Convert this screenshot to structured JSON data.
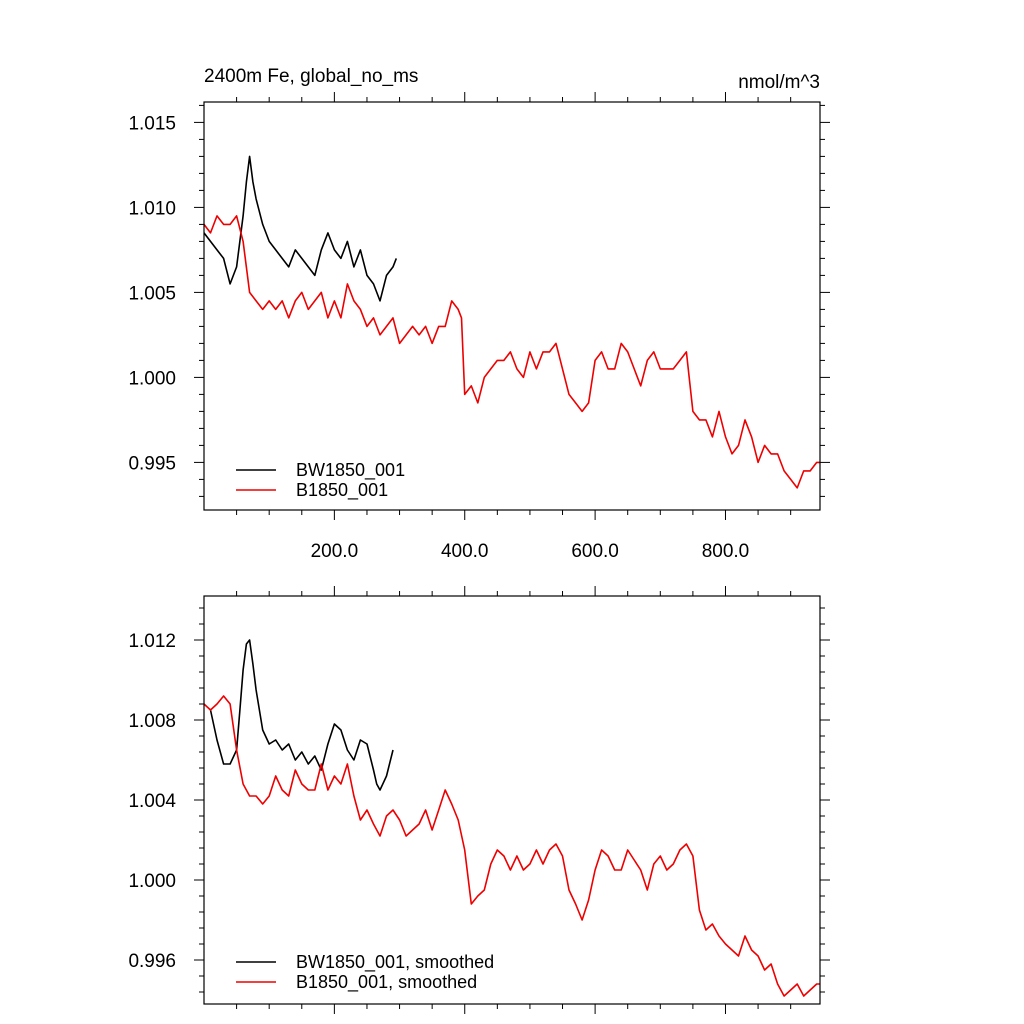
{
  "chart_data": [
    {
      "type": "line",
      "title": "2400m Fe, global_no_ms",
      "units": "nmol/m^3",
      "xlabel": "",
      "ylabel": "",
      "xlim": [
        0,
        945
      ],
      "ylim": [
        0.9922,
        1.0162
      ],
      "x_ticks": [
        200,
        400,
        600,
        800
      ],
      "x_tick_labels": [
        "200.0",
        "400.0",
        "600.0",
        "800.0"
      ],
      "y_ticks": [
        0.995,
        1.0,
        1.005,
        1.01,
        1.015
      ],
      "y_tick_labels": [
        "0.995",
        "1.000",
        "1.005",
        "1.010",
        "1.015"
      ],
      "legend": "bottom-left",
      "grid": false,
      "series": [
        {
          "name": "BW1850_001",
          "color": "#000000",
          "x": [
            0,
            10,
            20,
            30,
            40,
            50,
            60,
            65,
            70,
            75,
            80,
            90,
            100,
            110,
            120,
            130,
            140,
            150,
            160,
            170,
            180,
            190,
            200,
            210,
            220,
            230,
            240,
            250,
            260,
            270,
            280,
            290,
            295
          ],
          "y": [
            1.0085,
            1.008,
            1.0075,
            1.007,
            1.0055,
            1.0065,
            1.0095,
            1.0115,
            1.013,
            1.0115,
            1.0105,
            1.009,
            1.008,
            1.0075,
            1.007,
            1.0065,
            1.0075,
            1.007,
            1.0065,
            1.006,
            1.0075,
            1.0085,
            1.0075,
            1.007,
            1.008,
            1.0065,
            1.0075,
            1.006,
            1.0055,
            1.0045,
            1.006,
            1.0065,
            1.007
          ]
        },
        {
          "name": "B1850_001",
          "color": "#ee0000",
          "x": [
            0,
            10,
            20,
            30,
            40,
            50,
            60,
            70,
            80,
            90,
            100,
            110,
            120,
            130,
            140,
            150,
            160,
            170,
            180,
            190,
            200,
            210,
            220,
            230,
            240,
            250,
            260,
            270,
            280,
            290,
            300,
            310,
            320,
            330,
            340,
            350,
            360,
            370,
            380,
            390,
            395,
            400,
            410,
            420,
            430,
            440,
            450,
            460,
            470,
            480,
            490,
            500,
            510,
            520,
            530,
            540,
            550,
            560,
            570,
            580,
            590,
            600,
            610,
            620,
            630,
            640,
            650,
            660,
            670,
            680,
            690,
            700,
            710,
            720,
            730,
            740,
            750,
            760,
            770,
            780,
            790,
            800,
            810,
            820,
            830,
            840,
            850,
            860,
            870,
            880,
            890,
            900,
            910,
            920,
            930,
            940,
            945
          ],
          "y": [
            1.009,
            1.0085,
            1.0095,
            1.009,
            1.009,
            1.0095,
            1.008,
            1.005,
            1.0045,
            1.004,
            1.0045,
            1.004,
            1.0045,
            1.0035,
            1.0045,
            1.005,
            1.004,
            1.0045,
            1.005,
            1.0035,
            1.0045,
            1.0035,
            1.0055,
            1.0045,
            1.004,
            1.003,
            1.0035,
            1.0025,
            1.003,
            1.0035,
            1.002,
            1.0025,
            1.003,
            1.0025,
            1.003,
            1.002,
            1.003,
            1.003,
            1.0045,
            1.004,
            1.0035,
            0.999,
            0.9995,
            0.9985,
            1.0,
            1.0005,
            1.001,
            1.001,
            1.0015,
            1.0005,
            1.0,
            1.0015,
            1.0005,
            1.0015,
            1.0015,
            1.002,
            1.0005,
            0.999,
            0.9985,
            0.998,
            0.9985,
            1.001,
            1.0015,
            1.0005,
            1.0005,
            1.002,
            1.0015,
            1.0005,
            0.9995,
            1.001,
            1.0015,
            1.0005,
            1.0005,
            1.0005,
            1.001,
            1.0015,
            0.998,
            0.9975,
            0.9975,
            0.9965,
            0.998,
            0.9965,
            0.9955,
            0.996,
            0.9975,
            0.9965,
            0.995,
            0.996,
            0.9955,
            0.9955,
            0.9945,
            0.994,
            0.9935,
            0.9945,
            0.9945,
            0.995,
            0.995
          ]
        }
      ]
    },
    {
      "type": "line",
      "title": "",
      "xlabel": "",
      "ylabel": "",
      "xlim": [
        0,
        945
      ],
      "ylim": [
        0.9938,
        1.0142
      ],
      "x_ticks": [
        200,
        400,
        600,
        800
      ],
      "y_ticks": [
        0.996,
        1.0,
        1.004,
        1.008,
        1.012
      ],
      "y_tick_labels": [
        "0.996",
        "1.000",
        "1.004",
        "1.008",
        "1.012"
      ],
      "legend": "bottom-left",
      "grid": false,
      "series": [
        {
          "name": "BW1850_001, smoothed",
          "color": "#000000",
          "x": [
            10,
            20,
            30,
            40,
            50,
            55,
            60,
            65,
            70,
            75,
            80,
            90,
            100,
            110,
            120,
            130,
            140,
            150,
            160,
            170,
            180,
            190,
            200,
            210,
            220,
            230,
            240,
            250,
            260,
            265,
            270,
            280,
            290
          ],
          "y": [
            1.0085,
            1.007,
            1.0058,
            1.0058,
            1.0065,
            1.0085,
            1.0105,
            1.0118,
            1.012,
            1.0108,
            1.0095,
            1.0075,
            1.0068,
            1.007,
            1.0065,
            1.0068,
            1.006,
            1.0064,
            1.0058,
            1.0062,
            1.0055,
            1.0068,
            1.0078,
            1.0075,
            1.0065,
            1.006,
            1.007,
            1.0068,
            1.0055,
            1.0048,
            1.0045,
            1.0052,
            1.0065
          ]
        },
        {
          "name": "B1850_001, smoothed",
          "color": "#ee0000",
          "x": [
            0,
            10,
            20,
            30,
            40,
            50,
            60,
            70,
            80,
            90,
            100,
            110,
            120,
            130,
            140,
            150,
            160,
            170,
            180,
            190,
            200,
            210,
            220,
            230,
            240,
            250,
            260,
            270,
            280,
            290,
            300,
            310,
            320,
            330,
            340,
            350,
            360,
            370,
            380,
            390,
            400,
            410,
            420,
            430,
            440,
            450,
            460,
            470,
            480,
            490,
            500,
            510,
            520,
            530,
            540,
            550,
            560,
            570,
            580,
            590,
            600,
            610,
            620,
            630,
            640,
            650,
            660,
            670,
            680,
            690,
            700,
            710,
            720,
            730,
            740,
            750,
            760,
            770,
            780,
            790,
            800,
            810,
            820,
            830,
            840,
            850,
            860,
            870,
            880,
            890,
            900,
            910,
            920,
            930,
            940,
            945
          ],
          "y": [
            1.0088,
            1.0085,
            1.0088,
            1.0092,
            1.0088,
            1.0065,
            1.0048,
            1.0042,
            1.0042,
            1.0038,
            1.0042,
            1.0052,
            1.0045,
            1.0042,
            1.0055,
            1.0048,
            1.0045,
            1.0045,
            1.0058,
            1.0045,
            1.0052,
            1.0048,
            1.0058,
            1.0042,
            1.003,
            1.0035,
            1.0028,
            1.0022,
            1.0032,
            1.0035,
            1.003,
            1.0022,
            1.0025,
            1.0028,
            1.0035,
            1.0025,
            1.0035,
            1.0045,
            1.0038,
            1.003,
            1.0015,
            0.9988,
            0.9992,
            0.9995,
            1.0008,
            1.0015,
            1.0012,
            1.0005,
            1.0012,
            1.0005,
            1.0008,
            1.0015,
            1.0008,
            1.0015,
            1.0018,
            1.0012,
            0.9995,
            0.9988,
            0.998,
            0.999,
            1.0005,
            1.0015,
            1.0012,
            1.0005,
            1.0005,
            1.0015,
            1.001,
            1.0005,
            0.9995,
            1.0008,
            1.0012,
            1.0005,
            1.0008,
            1.0015,
            1.0018,
            1.0012,
            0.9985,
            0.9975,
            0.9978,
            0.9972,
            0.9968,
            0.9965,
            0.9962,
            0.9972,
            0.9965,
            0.9962,
            0.9955,
            0.9958,
            0.9948,
            0.9942,
            0.9945,
            0.9948,
            0.9942,
            0.9945,
            0.9948,
            0.9948
          ]
        }
      ]
    }
  ]
}
